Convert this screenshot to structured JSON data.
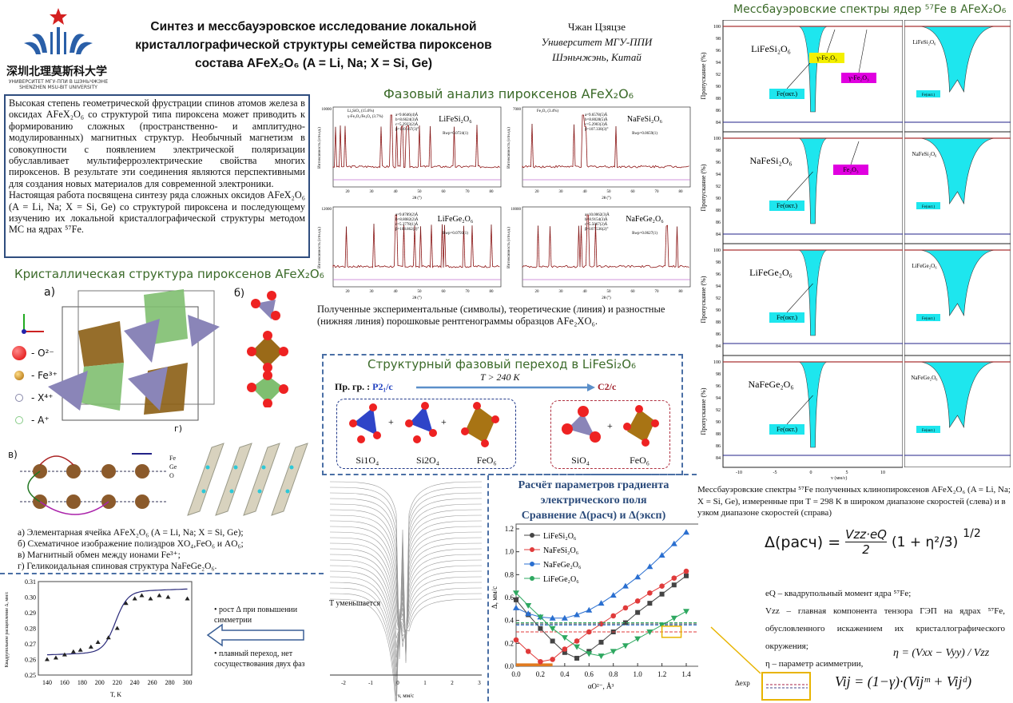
{
  "header": {
    "university_cn": "深圳北理莫斯科大学",
    "university_ru": "УНИВЕРСИТЕТ МГУ-ППИ В ШЭНЬЧЖЭНЕ",
    "university_en": "SHENZHEN MSU-BIT UNIVERSITY",
    "title_line1": "Синтез и мессбауэровское исследование локальной",
    "title_line2": "кристаллографической структуры семейства пироксенов",
    "title_line3": "состава AFeX₂O₆ (A = Li, Na; X = Si, Ge)",
    "author": "Чжан Цзяцзе",
    "affiliation1": "Университет МГУ-ППИ",
    "affiliation2": "Шэньчжэнь, Китай"
  },
  "intro": {
    "p1": "Высокая степень геометрической фрустрации спинов атомов железа в оксидах AFeX₂O₆ со структурой типа пироксена может приводить к формированию сложных (пространственно- и амплитудно-модулированных) магнитных структур. Необычный магнетизм в совокупности с появлением электрической поляризации обуславливает мультиферроэлектрические свойства многих пироксенов. В результате эти соединения являются перспективными для создания новых материалов для современной электроники.",
    "p2": "Настоящая работа посвящена синтезу ряда сложных оксидов AFeX₂O₆ (A = Li, Na; X = Si, Ge) со структурой пироксена и последующему изучению их локальной кристаллографической структуры методом МС на ядрах ⁵⁷Fe."
  },
  "crystal": {
    "title": "Кристаллическая структура пироксенов AFeX₂O₆",
    "label_a": "а)",
    "label_b": "б)",
    "label_v": "в)",
    "label_g": "г)",
    "legend": [
      "- O²⁻",
      "- Fe³⁺",
      "- X⁴⁺",
      "- A⁺"
    ],
    "helix_legend": [
      "Fe",
      "Ge",
      "O"
    ],
    "captions": [
      "а) Элементарная ячейка AFeX₂O₆ (A = Li, Na; X = Si, Ge);",
      "б) Схематичное изображение полиэдров XO₄,FeO₆ и AO₆;",
      "в) Магнитный обмен между ионами Fe³⁺;",
      "г) Геликоидальная спиновая структура NaFeGe₂O₆."
    ]
  },
  "phase": {
    "title": "Фазовый анализ пироксенов AFeX₂O₆",
    "panels": [
      {
        "name": "LiFeSi₂O₆",
        "params": [
          "a=9.6646(4)Å",
          "b=8.6624(3)Å",
          "c=5.2933(2)Å",
          "β=110.167(3)°"
        ],
        "r": "Rwp=0.0724(1)",
        "legend": [
          "Li₂SiO₃ (15.6%)",
          "γ-Fe₂O₃/Fe₃O₄ (3.7%)"
        ],
        "ymax": "10000"
      },
      {
        "name": "NaFeSi₂O₆",
        "params": [
          "a=9.6578(5)Å",
          "b=8.8028(5)Å",
          "c=5.2903(3)Å",
          "β=107.330(3)°"
        ],
        "r": "Rwp=0.0659(1)",
        "legend": [
          "Fe₂O₃ (3.4%)"
        ],
        "ymax": "7000"
      },
      {
        "name": "LiFeGe₂O₆",
        "params": [
          "a=9.8789(2)Å",
          "b=8.8082(2)Å",
          "c=5.3778(1)Å",
          "β=108.862(2)°"
        ],
        "r": "Rwp=0.0793(1)",
        "legend": [],
        "ymax": "12000"
      },
      {
        "name": "NaFeGe₂O₆",
        "params": [
          "a=10.0062(3)Å",
          "b=8.9154(3)Å",
          "c=5.5067(2)Å",
          "β=107.536(2)°"
        ],
        "r": "Rwp=0.0627(1)",
        "legend": [],
        "ymax": "10000"
      }
    ],
    "xlabel": "2θ (°)",
    "ylabel": "Интенсивность (отн.ед.)",
    "xticks": [
      "20",
      "30",
      "40",
      "50",
      "60",
      "70",
      "80"
    ],
    "caption": "Полученные экспериментальные (символы), теоретические (линия) и разностные (нижняя линия) порошковые рентгенограммы образцов AFe₂XO₆."
  },
  "transition": {
    "title": "Структурный фазовый переход в LiFeSi₂O₆",
    "space_group_label": "Пр. гр. :",
    "from_group": "P2₁/c",
    "to_group": "C2/c",
    "condition": "T > 240 K",
    "left_units": [
      "Si1O₄",
      "Si2O₄",
      "FeO₆"
    ],
    "right_units": [
      "SiO₄",
      "FeO₆"
    ],
    "plus": "+",
    "colors": {
      "from": "#1f3fbf",
      "to": "#a0202a",
      "arrow": "#5b8fc9"
    }
  },
  "spectra_stack": {
    "label": "T уменьшается",
    "xlabel": "v, мм/с",
    "xticks": [
      "-2",
      "-1",
      "0",
      "1",
      "2",
      "3"
    ]
  },
  "splitting_chart": {
    "ylabel": "Квадрупольное расщепление Δ, мм/с",
    "xlabel": "T, K",
    "bullets": [
      "• рост Δ при повышении симметрии",
      "• плавный переход, нет сосуществования двух фаз"
    ]
  },
  "calc": {
    "title1": "Расчёт параметров градиента",
    "title2": "электрического поля",
    "title3": "Сравнение Δ(расч) и Δ(эксп)",
    "formula_lhs": "Δ(расч) =",
    "formula_num": "Vzz·eQ",
    "formula_den": "2",
    "formula_paren": "(1 + η²/3)",
    "formula_exp": "1/2",
    "def1": "eQ – квадрупольный момент ядра ⁵⁷Fe;",
    "def2": "Vzz – главная компонента тензора ГЭП на ядрах ⁵⁷Fe, обусловленного искажением их кристаллографического окружения;",
    "def3": "η – параметр асимметрии,",
    "eta_formula": "η = (Vxx − Vyy) / Vzz",
    "vij_formula": "Vij = (1−γ)·(Vijᵐ + Vijᵈ)",
    "inset_label": "Δexp"
  },
  "mossbauer": {
    "title": "Мессбауэровские спектры ядер ⁵⁷Fe в AFeX₂O₆",
    "rows": [
      {
        "name": "LiFeSi₂O₆",
        "labels": [
          "Fe(окт.)",
          "γ-Fe₂O₃",
          "γ-Fe₂O₃"
        ]
      },
      {
        "name": "NaFeSi₂O₆",
        "labels": [
          "Fe(окт.)",
          "Fe₂O₃"
        ]
      },
      {
        "name": "LiFeGe₂O₆",
        "labels": [
          "Fe(окт.)"
        ]
      },
      {
        "name": "NaFeGe₂O₆",
        "labels": [
          "Fe(окт.)"
        ]
      }
    ],
    "ylabel": "Пропускание (%)",
    "xlabel": "v (мм/с)",
    "yticks": [
      "100",
      "98",
      "96",
      "94",
      "92",
      "90",
      "88",
      "86",
      "84"
    ],
    "xticks": [
      "-10",
      "-5",
      "0",
      "5",
      "10"
    ],
    "caption": "Мессбауэровские спектры ⁵⁷Fe полученных клинопироксенов AFeX₂O₆ (A = Li, Na; X = Si, Ge), измеренные при T = 298 K в широком диапазоне скоростей (слева) и в узком диапазоне скоростей (справа)",
    "colors": {
      "fill": "#1ee6ee",
      "yellow": "#f4f000",
      "magenta": "#e000e0"
    }
  },
  "chart_data": [
    {
      "type": "line",
      "title": "Сравнение Δ(расч) и Δ(эксп)",
      "xlabel": "αO²⁻, Å³",
      "ylabel": "Δ, мм/с",
      "xlim": [
        0,
        1.4
      ],
      "ylim": [
        0,
        1.2
      ],
      "xticks": [
        "0.0",
        "0.2",
        "0.4",
        "0.6",
        "0.8",
        "1.0",
        "1.2",
        "1.4"
      ],
      "yticks": [
        "0.0",
        "0.2",
        "0.4",
        "0.6",
        "0.8",
        "1.0",
        "1.2"
      ],
      "x": [
        0,
        0.1,
        0.2,
        0.3,
        0.4,
        0.5,
        0.6,
        0.7,
        0.8,
        0.9,
        1.0,
        1.1,
        1.2,
        1.3,
        1.4
      ],
      "legend": "top-left",
      "series": [
        {
          "name": "LiFeSi₂O₆",
          "color": "#444444",
          "marker": "square",
          "values": [
            0.58,
            0.45,
            0.33,
            0.22,
            0.12,
            0.07,
            0.13,
            0.21,
            0.3,
            0.38,
            0.47,
            0.55,
            0.63,
            0.71,
            0.79
          ],
          "exp": 0.37
        },
        {
          "name": "NaFeSi₂O₆",
          "color": "#e03a3a",
          "marker": "circle",
          "values": [
            0.23,
            0.13,
            0.04,
            0.06,
            0.15,
            0.22,
            0.3,
            0.37,
            0.44,
            0.51,
            0.57,
            0.64,
            0.7,
            0.77,
            0.83
          ],
          "exp": 0.3
        },
        {
          "name": "NaFeGe₂O₆",
          "color": "#2a6fd0",
          "marker": "triangle-up",
          "values": [
            0.51,
            0.46,
            0.43,
            0.42,
            0.42,
            0.45,
            0.49,
            0.55,
            0.62,
            0.7,
            0.78,
            0.87,
            0.97,
            1.07,
            1.17
          ],
          "exp": 0.36
        },
        {
          "name": "LiFeGe₂O₆",
          "color": "#2ea860",
          "marker": "triangle-down",
          "values": [
            0.64,
            0.53,
            0.43,
            0.33,
            0.25,
            0.17,
            0.11,
            0.09,
            0.13,
            0.18,
            0.24,
            0.3,
            0.36,
            0.42,
            0.48
          ],
          "exp": 0.38
        }
      ],
      "hatched_region": [
        0,
        0.3
      ]
    },
    {
      "type": "scatter",
      "xlabel": "T, K",
      "ylabel": "Квадрупольное расщепление Δ, мм/с",
      "xlim": [
        130,
        305
      ],
      "ylim": [
        0.25,
        0.31
      ],
      "xticks": [
        "140",
        "160",
        "180",
        "200",
        "220",
        "240",
        "260",
        "280",
        "300"
      ],
      "yticks": [
        "0.25",
        "0.26",
        "0.27",
        "0.28",
        "0.29",
        "0.30",
        "0.31"
      ],
      "x": [
        140,
        150,
        160,
        170,
        178,
        190,
        198,
        210,
        220,
        230,
        240,
        248,
        258,
        268,
        278,
        300
      ],
      "values": [
        0.26,
        0.261,
        0.263,
        0.265,
        0.266,
        0.268,
        0.271,
        0.274,
        0.28,
        0.296,
        0.299,
        0.301,
        0.299,
        0.301,
        0.3,
        0.299
      ],
      "fit": {
        "low": 0.263,
        "high": 0.302,
        "center": 218,
        "width": 7
      }
    }
  ]
}
